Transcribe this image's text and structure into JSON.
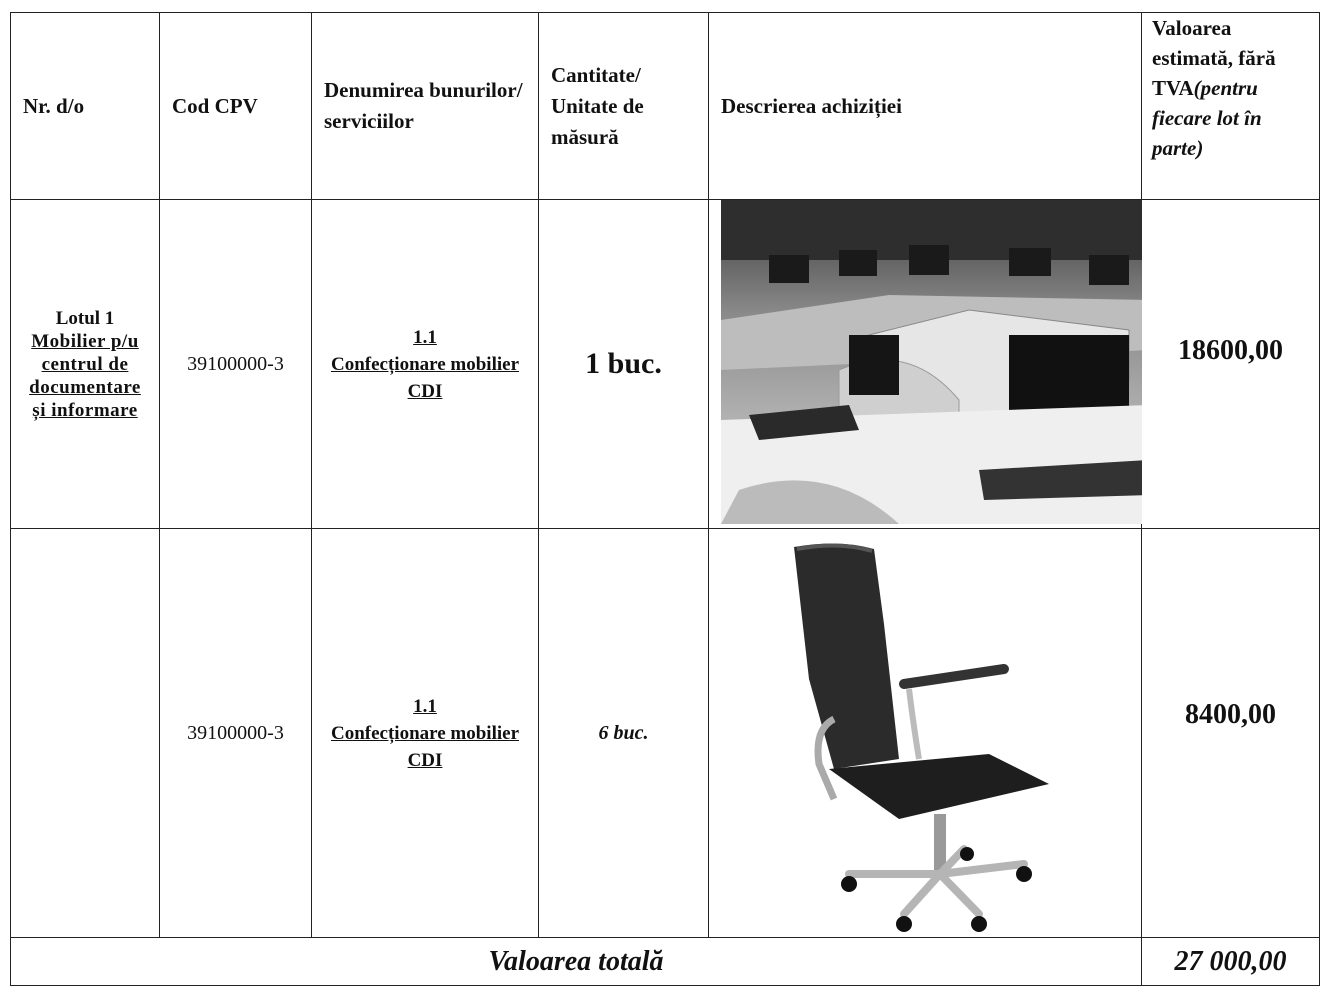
{
  "table": {
    "header": {
      "cells": [
        "Nr. d/o",
        "Cod CPV",
        "Denumirea bunurilor/ serviciilor",
        "Cantitate/ Unitate de măsură",
        "Descrierea achiziției"
      ],
      "value_title": "Valoarea estimată, fără TVA",
      "value_note": "(pentru fiecare lot în parte)"
    },
    "rows": [
      {
        "lot": "Lotul 1",
        "lot_name": "Mobilier p/u centrul de documentare și informare",
        "cpv": "39100000-3",
        "item_number": "1.1",
        "item_name": "Confecționare mobilier CDI",
        "quantity": "1 buc.",
        "value": "18600,00"
      },
      {
        "cpv": "39100000-3",
        "item_number": "1.1",
        "item_name": "Confecționare mobilier CDI",
        "quantity": "6 buc.",
        "value": "8400,00"
      }
    ],
    "total": {
      "label": "Valoarea totală",
      "value": "27 000,00"
    }
  }
}
